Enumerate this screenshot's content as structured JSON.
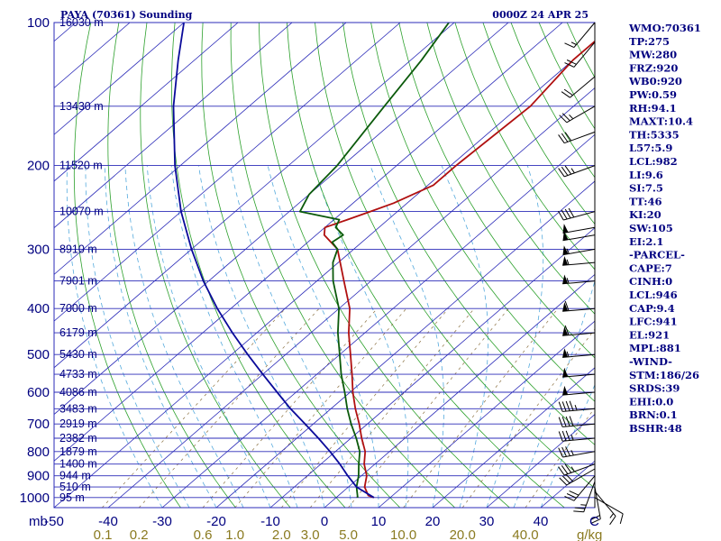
{
  "chart_data": {
    "type": "line",
    "title_left": "PAYA (70361) Sounding",
    "title_right": "0000Z 24 APR 25",
    "x_unit_label": "C",
    "mixing_unit_label": "g/kg",
    "pressure_axis_label": "mb",
    "pressure_ticks": [
      100,
      200,
      300,
      400,
      500,
      600,
      700,
      800,
      900,
      1000
    ],
    "temperature_ticks": [
      "-50",
      "-40",
      "-30",
      "-20",
      "-10",
      "0",
      "10",
      "20",
      "30",
      "40"
    ],
    "temperature_tick_values": [
      -50,
      -40,
      -30,
      -20,
      -10,
      0,
      10,
      20,
      30,
      40
    ],
    "mixing_ratio_ticks": [
      "0.1",
      "0.2",
      "0.6",
      "1.0",
      "2.0",
      "3.0",
      "5.0",
      "10.0",
      "20.0",
      "40.0"
    ],
    "mixing_ratio_values": [
      0.1,
      0.2,
      0.6,
      1.0,
      2.0,
      3.0,
      5.0,
      10.0,
      20.0,
      40.0
    ],
    "height_levels": [
      {
        "p": 100,
        "label": "16030 m"
      },
      {
        "p": 150,
        "label": "13430 m"
      },
      {
        "p": 200,
        "label": "11520 m"
      },
      {
        "p": 250,
        "label": "10070 m"
      },
      {
        "p": 300,
        "label": "8910 m"
      },
      {
        "p": 350,
        "label": "7901 m"
      },
      {
        "p": 400,
        "label": "7000 m"
      },
      {
        "p": 450,
        "label": "6179 m"
      },
      {
        "p": 500,
        "label": "5430 m"
      },
      {
        "p": 550,
        "label": "4733 m"
      },
      {
        "p": 600,
        "label": "4086 m"
      },
      {
        "p": 650,
        "label": "3483 m"
      },
      {
        "p": 700,
        "label": "2919 m"
      },
      {
        "p": 750,
        "label": "2382 m"
      },
      {
        "p": 800,
        "label": "1879 m"
      },
      {
        "p": 850,
        "label": "1400 m"
      },
      {
        "p": 900,
        "label": "944 m"
      },
      {
        "p": 950,
        "label": "510 m"
      },
      {
        "p": 1000,
        "label": "95 m"
      }
    ],
    "series": [
      {
        "name": "Temperature",
        "points": [
          {
            "p": 1000,
            "t": 7.0
          },
          {
            "p": 990,
            "t": 5.5
          },
          {
            "p": 950,
            "t": 3.0
          },
          {
            "p": 900,
            "t": 1.0
          },
          {
            "p": 850,
            "t": -2.0
          },
          {
            "p": 800,
            "t": -4.5
          },
          {
            "p": 750,
            "t": -8.0
          },
          {
            "p": 700,
            "t": -11.5
          },
          {
            "p": 650,
            "t": -15.5
          },
          {
            "p": 600,
            "t": -19.5
          },
          {
            "p": 550,
            "t": -23.5
          },
          {
            "p": 500,
            "t": -28.0
          },
          {
            "p": 450,
            "t": -33.0
          },
          {
            "p": 400,
            "t": -38.0
          },
          {
            "p": 350,
            "t": -45.0
          },
          {
            "p": 300,
            "t": -53.0
          },
          {
            "p": 280,
            "t": -58.5
          },
          {
            "p": 270,
            "t": -60.0
          },
          {
            "p": 260,
            "t": -57.5
          },
          {
            "p": 250,
            "t": -55.0
          },
          {
            "p": 240,
            "t": -52.5
          },
          {
            "p": 220,
            "t": -49.0
          },
          {
            "p": 200,
            "t": -49.0
          },
          {
            "p": 150,
            "t": -48.0
          },
          {
            "p": 120,
            "t": -50.0
          },
          {
            "p": 100,
            "t": -50.0
          }
        ]
      },
      {
        "name": "Dewpoint",
        "points": [
          {
            "p": 1000,
            "t": 4.0
          },
          {
            "p": 950,
            "t": 1.5
          },
          {
            "p": 900,
            "t": -0.5
          },
          {
            "p": 850,
            "t": -3.0
          },
          {
            "p": 800,
            "t": -5.5
          },
          {
            "p": 750,
            "t": -9.0
          },
          {
            "p": 700,
            "t": -13.0
          },
          {
            "p": 650,
            "t": -17.0
          },
          {
            "p": 600,
            "t": -21.0
          },
          {
            "p": 550,
            "t": -25.5
          },
          {
            "p": 500,
            "t": -30.0
          },
          {
            "p": 450,
            "t": -35.0
          },
          {
            "p": 400,
            "t": -40.0
          },
          {
            "p": 350,
            "t": -47.0
          },
          {
            "p": 320,
            "t": -51.0
          },
          {
            "p": 300,
            "t": -53.0
          },
          {
            "p": 290,
            "t": -55.5
          },
          {
            "p": 280,
            "t": -55.0
          },
          {
            "p": 270,
            "t": -58.0
          },
          {
            "p": 260,
            "t": -59.0
          },
          {
            "p": 250,
            "t": -68.0
          },
          {
            "p": 230,
            "t": -70.0
          },
          {
            "p": 200,
            "t": -71.0
          },
          {
            "p": 150,
            "t": -75.0
          },
          {
            "p": 120,
            "t": -78.0
          },
          {
            "p": 100,
            "t": -81.0
          }
        ]
      },
      {
        "name": "Parcel",
        "points": [
          {
            "p": 1000,
            "t": 7.0
          },
          {
            "p": 950,
            "t": 1.5
          },
          {
            "p": 900,
            "t": -2.5
          },
          {
            "p": 850,
            "t": -6.5
          },
          {
            "p": 800,
            "t": -11.0
          },
          {
            "p": 750,
            "t": -16.0
          },
          {
            "p": 700,
            "t": -21.5
          },
          {
            "p": 650,
            "t": -27.5
          },
          {
            "p": 600,
            "t": -33.5
          },
          {
            "p": 550,
            "t": -40.0
          },
          {
            "p": 500,
            "t": -47.0
          },
          {
            "p": 450,
            "t": -54.5
          },
          {
            "p": 400,
            "t": -62.5
          },
          {
            "p": 350,
            "t": -71.0
          },
          {
            "p": 300,
            "t": -80.0
          },
          {
            "p": 250,
            "t": -90.0
          },
          {
            "p": 200,
            "t": -101.0
          },
          {
            "p": 150,
            "t": -114.0
          },
          {
            "p": 120,
            "t": -123.0
          },
          {
            "p": 100,
            "t": -130.0
          }
        ]
      }
    ],
    "indices": [
      "WMO:70361",
      "TP:275",
      "MW:280",
      "FRZ:920",
      "WB0:920",
      "PW:0.59",
      "RH:94.1",
      "MAXT:10.4",
      "TH:5335",
      "L57:5.9",
      "LCL:982",
      "LI:9.6",
      "SI:7.5",
      "TT:46",
      "KI:20",
      "SW:105",
      "EI:2.1",
      "-PARCEL-",
      "CAPE:7",
      "CINH:0",
      "LCL:946",
      "CAP:9.4",
      "LFC:941",
      "EL:921",
      "MPL:881",
      "-WIND-",
      "STM:186/26",
      "SRDS:39",
      "EHI:0.0",
      "BRN:0.1",
      "BSHR:48"
    ],
    "wind_profile": [
      {
        "p": 1000,
        "dir": 120,
        "kt": 10
      },
      {
        "p": 970,
        "dir": 140,
        "kt": 15
      },
      {
        "p": 950,
        "dir": 170,
        "kt": 20
      },
      {
        "p": 925,
        "dir": 200,
        "kt": 25
      },
      {
        "p": 900,
        "dir": 220,
        "kt": 30
      },
      {
        "p": 870,
        "dir": 240,
        "kt": 30
      },
      {
        "p": 850,
        "dir": 250,
        "kt": 35
      },
      {
        "p": 800,
        "dir": 260,
        "kt": 35
      },
      {
        "p": 750,
        "dir": 265,
        "kt": 35
      },
      {
        "p": 700,
        "dir": 265,
        "kt": 40
      },
      {
        "p": 650,
        "dir": 265,
        "kt": 45
      },
      {
        "p": 600,
        "dir": 265,
        "kt": 50
      },
      {
        "p": 550,
        "dir": 265,
        "kt": 50
      },
      {
        "p": 500,
        "dir": 265,
        "kt": 55
      },
      {
        "p": 450,
        "dir": 265,
        "kt": 60
      },
      {
        "p": 400,
        "dir": 265,
        "kt": 60
      },
      {
        "p": 350,
        "dir": 265,
        "kt": 55
      },
      {
        "p": 320,
        "dir": 265,
        "kt": 55
      },
      {
        "p": 300,
        "dir": 260,
        "kt": 55
      },
      {
        "p": 280,
        "dir": 260,
        "kt": 50
      },
      {
        "p": 270,
        "dir": 260,
        "kt": 50
      },
      {
        "p": 250,
        "dir": 255,
        "kt": 40
      },
      {
        "p": 200,
        "dir": 250,
        "kt": 35
      },
      {
        "p": 170,
        "dir": 250,
        "kt": 30
      },
      {
        "p": 150,
        "dir": 240,
        "kt": 25
      },
      {
        "p": 130,
        "dir": 230,
        "kt": 20
      },
      {
        "p": 110,
        "dir": 220,
        "kt": 20
      },
      {
        "p": 100,
        "dir": 220,
        "kt": 15
      }
    ],
    "colors": {
      "isobar": "#2b2bb8",
      "isotherm": "#2b2bb8",
      "dry_adiabat": "#2ca02c",
      "moist_adiabat": "#55aadd",
      "mixing_ratio": "#8a7040",
      "temperature": "#b01010",
      "dewpoint": "#0b5a0b",
      "parcel": "#0a0a9a",
      "text": "#000080",
      "mixing_text": "#8a7a20"
    }
  }
}
